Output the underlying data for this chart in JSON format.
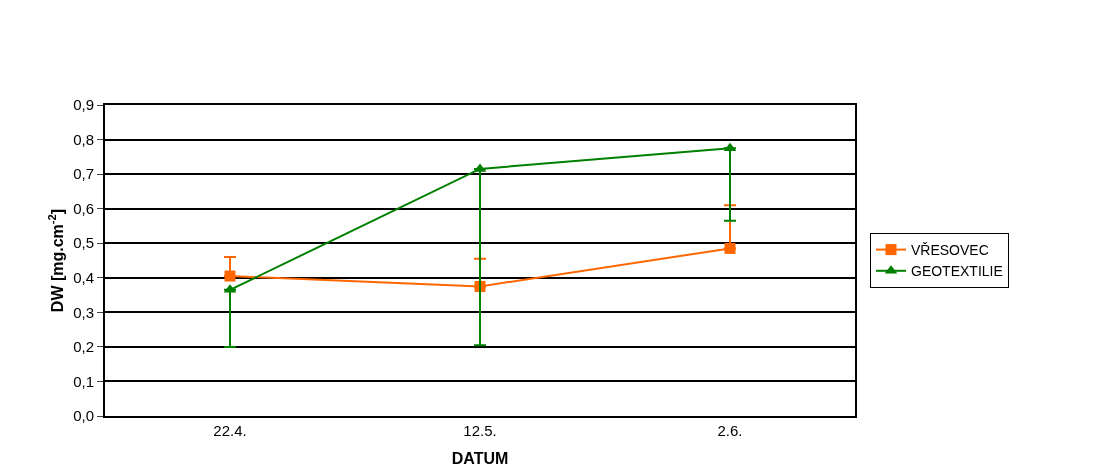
{
  "chart_data": {
    "type": "line",
    "xlabel": "DATUM",
    "ylabel": "DW [mg.cm$^{-2}$]",
    "categories": [
      "22.4.",
      "12.5.",
      "2.6."
    ],
    "series": [
      {
        "name": "VŘESOVEC",
        "color": "#ff6600",
        "marker": "square",
        "values": [
          0.405,
          0.375,
          0.485
        ],
        "errors": [
          [
            0.405,
            0.46
          ],
          [
            0.375,
            0.455
          ],
          [
            0.485,
            0.61
          ]
        ]
      },
      {
        "name": "GEOTEXTILIE",
        "color": "#008000",
        "marker": "triangle",
        "values": [
          0.365,
          0.715,
          0.775
        ],
        "errors": [
          [
            0.2,
            0.365
          ],
          [
            0.205,
            0.715
          ],
          [
            0.565,
            0.775
          ]
        ]
      }
    ],
    "ylim": [
      0,
      0.9
    ],
    "yticks": [
      {
        "value": 0,
        "label": "0,0"
      },
      {
        "value": 0.1,
        "label": "0,1"
      },
      {
        "value": 0.2,
        "label": "0,2"
      },
      {
        "value": 0.3,
        "label": "0,3"
      },
      {
        "value": 0.4,
        "label": "0,4"
      },
      {
        "value": 0.5,
        "label": "0,5"
      },
      {
        "value": 0.6,
        "label": "0,6"
      },
      {
        "value": 0.7,
        "label": "0,7"
      },
      {
        "value": 0.8,
        "label": "0,8"
      },
      {
        "value": 0.9,
        "label": "0,9"
      }
    ],
    "grid": "y",
    "legend": "right",
    "line_style": "solid"
  }
}
